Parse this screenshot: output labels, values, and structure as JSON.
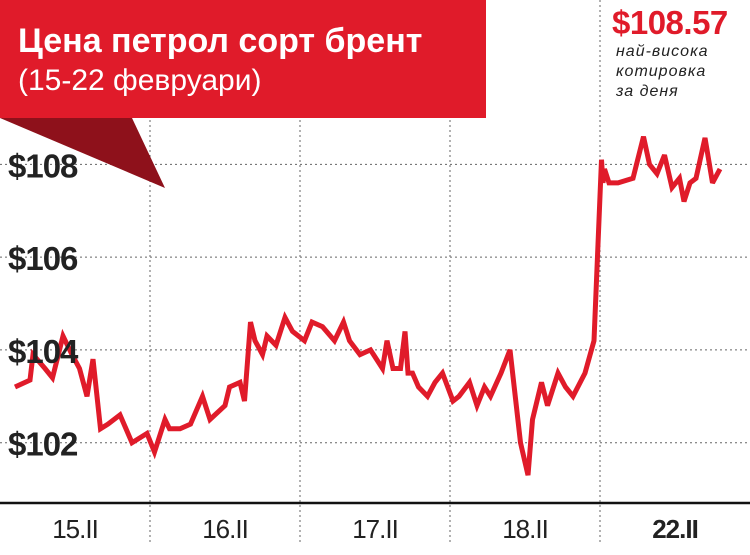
{
  "header": {
    "title": "Цена петрол сорт брент",
    "subtitle": "(15-22 февруари)"
  },
  "annotation": {
    "value": "$108.57",
    "caption_lines": [
      "най-висока",
      "котировка",
      "за деня"
    ]
  },
  "colors": {
    "accent": "#e01b2a",
    "accent_dark": "#8e111b",
    "grid": "#666666",
    "text": "#222222"
  },
  "chart_data": {
    "type": "line",
    "title": "Цена петрол сорт брент",
    "subtitle": "(15-22 февруари)",
    "ylim": [
      100.7,
      109.0
    ],
    "yticks": [
      102,
      104,
      106,
      108
    ],
    "ytick_labels": [
      "$102",
      "$104",
      "$106",
      "$108"
    ],
    "xlim": [
      0,
      5
    ],
    "categories": [
      "15.II",
      "16.II",
      "17.II",
      "18.II",
      "22.II"
    ],
    "grid": true,
    "series": [
      {
        "x": [
          0.1,
          0.2,
          0.22,
          0.3,
          0.35,
          0.42,
          0.48,
          0.53,
          0.58,
          0.62,
          0.67,
          0.72,
          0.8,
          0.88,
          0.98,
          1.03,
          1.1,
          1.13,
          1.2,
          1.27,
          1.35,
          1.4,
          1.5,
          1.53,
          1.6,
          1.63,
          1.67,
          1.7,
          1.75,
          1.78,
          1.84,
          1.9,
          1.95,
          2.03,
          2.08,
          2.15,
          2.23,
          2.29,
          2.33,
          2.4,
          2.47,
          2.55,
          2.58,
          2.62,
          2.67,
          2.7,
          2.72,
          2.75,
          2.79,
          2.85,
          2.9,
          2.95,
          3.02,
          3.06,
          3.13,
          3.18,
          3.23,
          3.27,
          3.34,
          3.4,
          3.47,
          3.52,
          3.55,
          3.61,
          3.65,
          3.72,
          3.77,
          3.82,
          3.9,
          3.96,
          4.01,
          4.02,
          4.03,
          4.06,
          4.12,
          4.22,
          4.29,
          4.33,
          4.38,
          4.43,
          4.48,
          4.53,
          4.56,
          4.6,
          4.64,
          4.7,
          4.75,
          4.8
        ],
        "y": [
          103.2,
          103.35,
          103.9,
          103.6,
          103.4,
          104.3,
          103.9,
          103.6,
          103.0,
          103.8,
          102.3,
          102.4,
          102.6,
          102.0,
          102.2,
          101.8,
          102.5,
          102.3,
          102.3,
          102.4,
          103.0,
          102.5,
          102.8,
          103.2,
          103.3,
          102.9,
          104.6,
          104.2,
          103.9,
          104.3,
          104.1,
          104.7,
          104.4,
          104.2,
          104.6,
          104.5,
          104.2,
          104.6,
          104.2,
          103.9,
          104.0,
          103.6,
          104.2,
          103.6,
          103.6,
          104.4,
          103.5,
          103.5,
          103.2,
          103.0,
          103.3,
          103.5,
          102.9,
          103.0,
          103.3,
          102.8,
          103.2,
          103.0,
          103.5,
          104.0,
          102.0,
          101.3,
          102.5,
          103.3,
          102.8,
          103.5,
          103.2,
          103.0,
          103.5,
          104.2,
          108.1,
          107.6,
          107.9,
          107.6,
          107.6,
          107.7,
          108.6,
          108.0,
          107.8,
          108.2,
          107.5,
          107.7,
          107.2,
          107.6,
          107.7,
          108.57,
          107.6,
          107.9
        ]
      }
    ]
  }
}
